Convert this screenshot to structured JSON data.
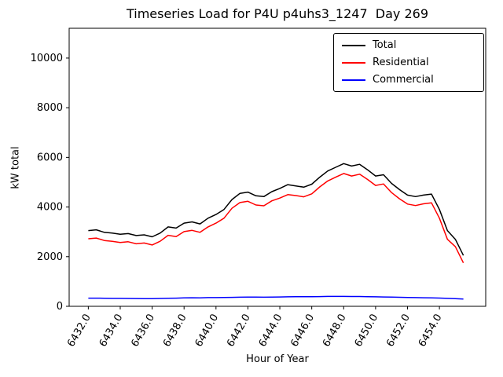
{
  "figure": {
    "title": "Timeseries Load for P4U p4uhs3_1247  Day 269",
    "xlabel": "Hour of Year",
    "ylabel": "kW total"
  },
  "chart_data": {
    "type": "line",
    "title": "Timeseries Load for P4U p4uhs3_1247  Day 269",
    "xlabel": "Hour of Year",
    "ylabel": "kW total",
    "grid": false,
    "legend_position": "upper right",
    "xlim": [
      6430.8,
      6456.9
    ],
    "ylim": [
      0,
      11200
    ],
    "xticks": [
      6432,
      6434,
      6436,
      6438,
      6440,
      6442,
      6444,
      6446,
      6448,
      6450,
      6452,
      6454
    ],
    "xtick_labels": [
      "6432.0",
      "6434.0",
      "6436.0",
      "6438.0",
      "6440.0",
      "6442.0",
      "6444.0",
      "6446.0",
      "6448.0",
      "6450.0",
      "6452.0",
      "6454.0"
    ],
    "yticks": [
      0,
      2000,
      4000,
      6000,
      8000,
      10000
    ],
    "ytick_labels": [
      "0",
      "2000",
      "4000",
      "6000",
      "8000",
      "10000"
    ],
    "x": [
      6432.0,
      6432.5,
      6433.0,
      6433.5,
      6434.0,
      6434.5,
      6435.0,
      6435.5,
      6436.0,
      6436.5,
      6437.0,
      6437.5,
      6438.0,
      6438.5,
      6439.0,
      6439.5,
      6440.0,
      6440.5,
      6441.0,
      6441.5,
      6442.0,
      6442.5,
      6443.0,
      6443.5,
      6444.0,
      6444.5,
      6445.0,
      6445.5,
      6446.0,
      6446.5,
      6447.0,
      6447.5,
      6448.0,
      6448.5,
      6449.0,
      6449.5,
      6450.0,
      6450.5,
      6451.0,
      6451.5,
      6452.0,
      6452.5,
      6453.0,
      6453.5,
      6454.0,
      6454.5,
      6455.0,
      6455.5
    ],
    "series": [
      {
        "name": "Total",
        "color": "#000000",
        "values": [
          3050,
          3080,
          2980,
          2950,
          2900,
          2930,
          2850,
          2880,
          2800,
          2950,
          3200,
          3150,
          3350,
          3400,
          3320,
          3550,
          3700,
          3900,
          4300,
          4550,
          4600,
          4450,
          4420,
          4620,
          4750,
          4900,
          4850,
          4800,
          4920,
          5200,
          5450,
          5600,
          5750,
          5650,
          5720,
          5500,
          5250,
          5300,
          4950,
          4700,
          4480,
          4420,
          4480,
          4520,
          3900,
          3050,
          2700,
          2050
        ]
      },
      {
        "name": "Residential",
        "color": "#ff0000",
        "values": [
          2720,
          2750,
          2650,
          2620,
          2570,
          2600,
          2520,
          2550,
          2470,
          2620,
          2860,
          2810,
          3010,
          3060,
          2980,
          3200,
          3350,
          3550,
          3950,
          4180,
          4230,
          4080,
          4050,
          4250,
          4360,
          4500,
          4460,
          4410,
          4530,
          4810,
          5050,
          5200,
          5350,
          5250,
          5320,
          5110,
          4870,
          4930,
          4580,
          4330,
          4120,
          4060,
          4130,
          4170,
          3550,
          2700,
          2400,
          1750
        ]
      },
      {
        "name": "Commercial",
        "color": "#0000ff",
        "values": [
          330,
          330,
          325,
          320,
          318,
          315,
          312,
          310,
          308,
          315,
          325,
          330,
          340,
          345,
          342,
          350,
          352,
          358,
          362,
          368,
          372,
          372,
          368,
          372,
          378,
          382,
          385,
          385,
          388,
          392,
          398,
          400,
          400,
          396,
          395,
          390,
          382,
          375,
          370,
          365,
          358,
          352,
          345,
          340,
          332,
          320,
          308,
          290
        ]
      }
    ]
  }
}
